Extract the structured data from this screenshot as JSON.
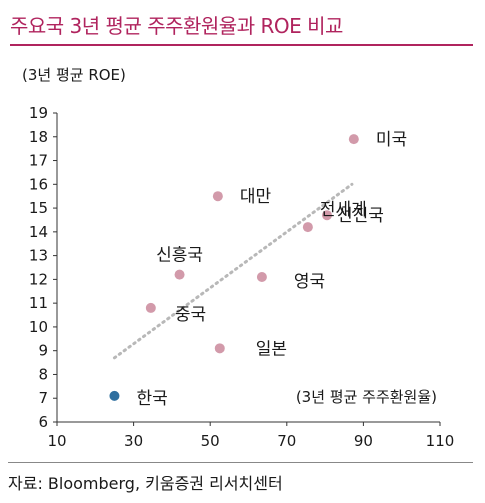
{
  "title": "주요국 3년 평균 주주환원율과 ROE 비교",
  "source": "자료: Bloomberg, 키움증권 리서치센터",
  "colors": {
    "accent": "#b0245e",
    "point_default": "#d29aaa",
    "point_highlight": "#2f6f9f",
    "trend": "#b8b8b8"
  },
  "chart_data": {
    "type": "scatter",
    "xlabel": "(3년 평균 주주환원율)",
    "ylabel": "(3년 평균 ROE)",
    "xlim": [
      10,
      110
    ],
    "ylim": [
      6,
      19
    ],
    "xticks": [
      10,
      30,
      50,
      70,
      90,
      110
    ],
    "yticks": [
      6,
      7,
      8,
      9,
      10,
      11,
      12,
      13,
      14,
      15,
      16,
      17,
      18,
      19
    ],
    "grid": false,
    "points": [
      {
        "label": "미국",
        "x": 87.5,
        "y": 17.9,
        "highlight": false
      },
      {
        "label": "대만",
        "x": 52.0,
        "y": 15.5,
        "highlight": false
      },
      {
        "label": "선진국",
        "x": 80.5,
        "y": 14.7,
        "highlight": false
      },
      {
        "label": "전세계",
        "x": 75.5,
        "y": 14.2,
        "highlight": false
      },
      {
        "label": "신흥국",
        "x": 42.0,
        "y": 12.2,
        "highlight": false
      },
      {
        "label": "영국",
        "x": 63.5,
        "y": 12.1,
        "highlight": false
      },
      {
        "label": "중국",
        "x": 34.5,
        "y": 10.8,
        "highlight": false
      },
      {
        "label": "일본",
        "x": 52.5,
        "y": 9.1,
        "highlight": false
      },
      {
        "label": "한국",
        "x": 25.0,
        "y": 7.1,
        "highlight": true
      }
    ],
    "trendline": {
      "style": "dotted",
      "x": [
        25,
        87
      ],
      "y": [
        8.7,
        16.0
      ]
    }
  }
}
